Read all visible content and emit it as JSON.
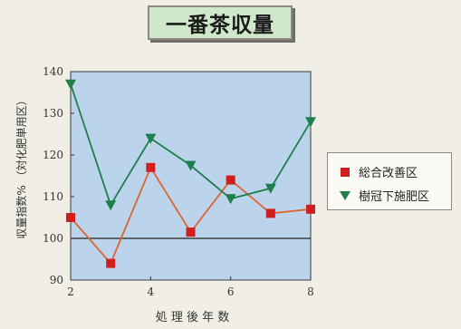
{
  "title": "一番茶収量",
  "chart_data": {
    "type": "line",
    "title": "一番茶収量",
    "xlabel": "処 理 後 年 数",
    "ylabel": "収量指数% （対化肥単用区）",
    "x": [
      2,
      3,
      4,
      5,
      6,
      7,
      8
    ],
    "xticks": [
      "2",
      "4",
      "6",
      "8"
    ],
    "yticks": [
      "90",
      "100",
      "110",
      "120",
      "130",
      "140"
    ],
    "xlim": [
      2,
      8
    ],
    "ylim": [
      90,
      140
    ],
    "reference_line": 100,
    "grid": false,
    "legend_position": "right",
    "plot_background": "#bcd3ec",
    "series": [
      {
        "name": "総合改善区",
        "values": [
          105,
          94,
          117,
          101.5,
          114,
          106,
          107
        ],
        "color": "#d11f1f",
        "line_color": "#d8662e",
        "marker": "square"
      },
      {
        "name": "樹冠下施肥区",
        "values": [
          137,
          108,
          124,
          117.5,
          109.5,
          112,
          128
        ],
        "color": "#1f7f4a",
        "line_color": "#1f7f4a",
        "marker": "triangle-down"
      }
    ]
  }
}
